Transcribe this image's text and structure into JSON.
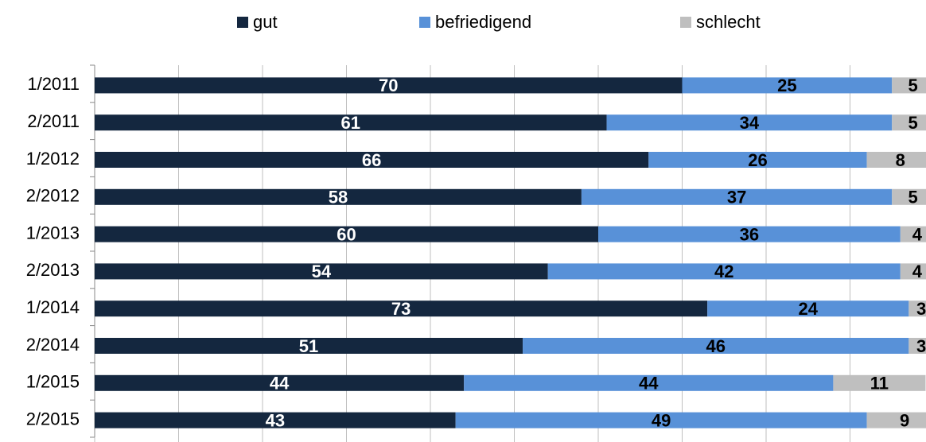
{
  "chart_data": {
    "type": "stacked-barh",
    "categories": [
      "1/2011",
      "2/2011",
      "1/2012",
      "2/2012",
      "1/2013",
      "2/2013",
      "1/2014",
      "2/2014",
      "1/2015",
      "2/2015"
    ],
    "series": [
      {
        "name": "gut",
        "color": "#14273f",
        "values": [
          70,
          61,
          66,
          58,
          60,
          54,
          73,
          51,
          44,
          43
        ]
      },
      {
        "name": "befriedigend",
        "color": "#5891d8",
        "values": [
          25,
          34,
          26,
          37,
          36,
          42,
          24,
          46,
          44,
          49
        ]
      },
      {
        "name": "schlecht",
        "color": "#bfbfbf",
        "values": [
          5,
          5,
          8,
          5,
          4,
          4,
          3,
          3,
          11,
          9
        ]
      }
    ],
    "xlim": [
      0,
      100
    ],
    "xticks": [
      0,
      10,
      20,
      30,
      40,
      50,
      60,
      70,
      80,
      90,
      100
    ],
    "grid": true,
    "legend": "top"
  }
}
